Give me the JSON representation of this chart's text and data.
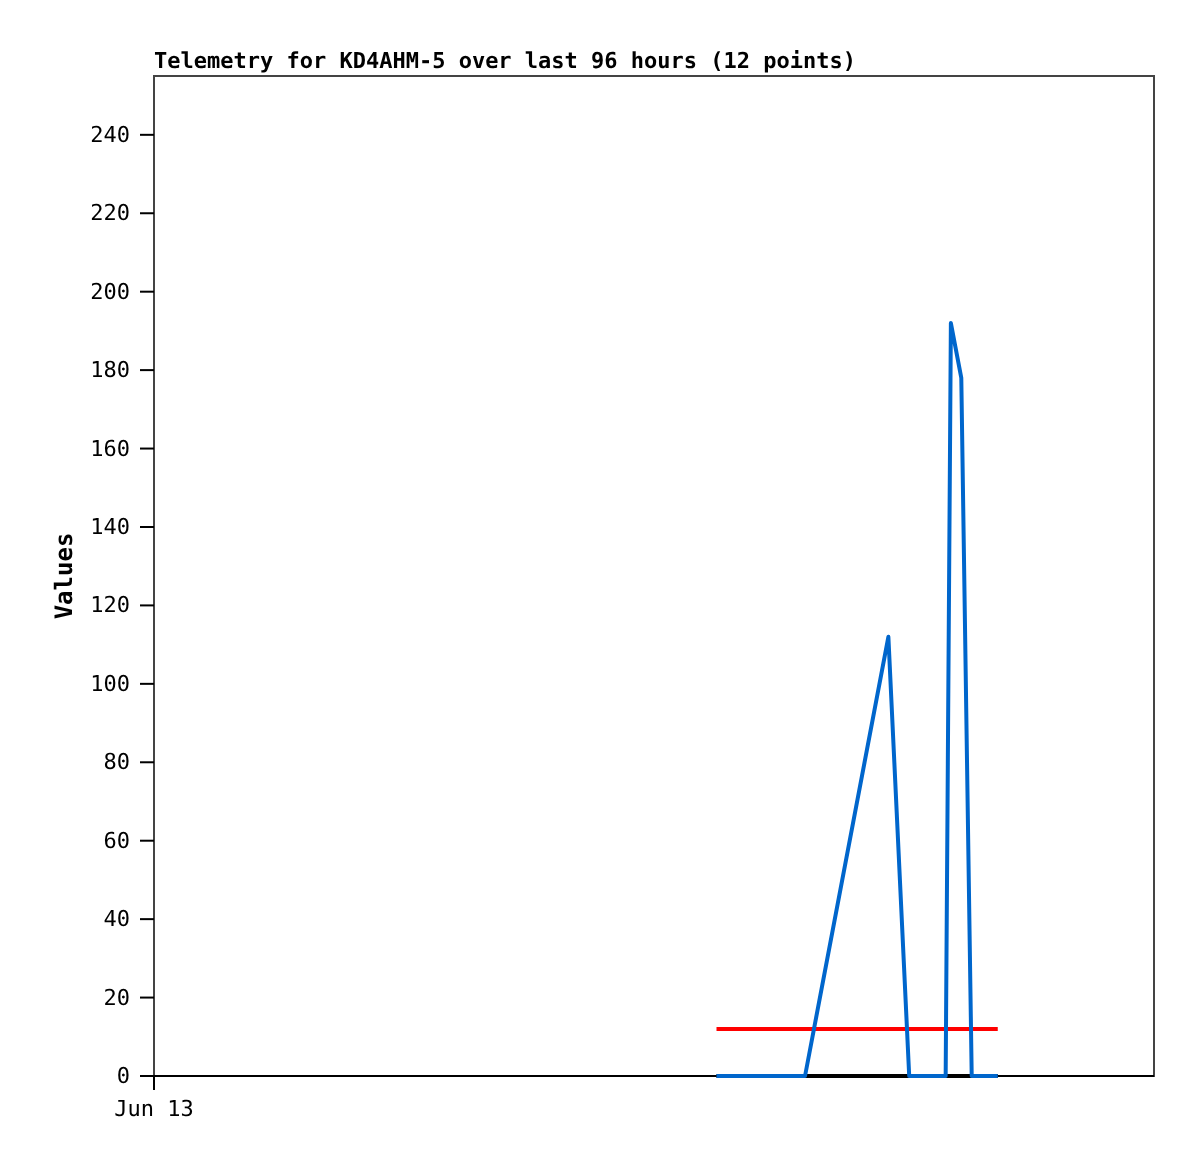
{
  "chart_data": {
    "type": "line",
    "title": "Telemetry for KD4AHM-5 over last 96 hours (12 points)",
    "ylabel": "Values",
    "categories": [
      null,
      null,
      null,
      null,
      null,
      null,
      null,
      null,
      null,
      null,
      null,
      null,
      null,
      null,
      null,
      null,
      null,
      null,
      null,
      null,
      null,
      null,
      null,
      null,
      null,
      null,
      null,
      null,
      null,
      null,
      null,
      null,
      null,
      null,
      null,
      null,
      null,
      null,
      null,
      null,
      null,
      null,
      null,
      null,
      null,
      null,
      null,
      null,
      null,
      null,
      null,
      null,
      null,
      null,
      null,
      null,
      null,
      null,
      null,
      null,
      null,
      null,
      null,
      null,
      null,
      null,
      null,
      null,
      null,
      null,
      null,
      null,
      null,
      null,
      null,
      null,
      null,
      null,
      null,
      null,
      null,
      null,
      null,
      null,
      null,
      null,
      null,
      null,
      null,
      null,
      null,
      null,
      null,
      null,
      null,
      null,
      null,
      null,
      null,
      null,
      null,
      null,
      null,
      null,
      null,
      null,
      null,
      null,
      null,
      null,
      null,
      null,
      null,
      null,
      null,
      null,
      null,
      null,
      null,
      null,
      null,
      null,
      null,
      null,
      null,
      null,
      null,
      null,
      null,
      null,
      null,
      null,
      null,
      null,
      null,
      null,
      null,
      null,
      null,
      null,
      null,
      null,
      null,
      null,
      null,
      null,
      null,
      null,
      null,
      null,
      null,
      null,
      null,
      null,
      null,
      null,
      null,
      null,
      null,
      null,
      null,
      null,
      null,
      null,
      null,
      null,
      null,
      null,
      null,
      null,
      null,
      null,
      null,
      null,
      null,
      null,
      null,
      null,
      null,
      null,
      null,
      null,
      null,
      null,
      null,
      null,
      null,
      null,
      null,
      null,
      null,
      null,
      null
    ],
    "ylim": [
      0,
      255
    ],
    "yticks": [
      0,
      20,
      40,
      60,
      80,
      100,
      120,
      140,
      160,
      180,
      200,
      220,
      240
    ],
    "annotations": [
      "Jun 13"
    ],
    "series": [
      {
        "color": "#000000",
        "values": [
          null,
          null,
          null,
          null,
          null,
          null,
          null,
          null,
          null,
          null,
          null,
          null,
          null,
          null,
          null,
          null,
          null,
          null,
          null,
          null,
          null,
          null,
          null,
          null,
          null,
          null,
          null,
          null,
          null,
          null,
          null,
          null,
          null,
          null,
          null,
          null,
          null,
          null,
          null,
          null,
          null,
          null,
          null,
          null,
          null,
          null,
          null,
          null,
          null,
          null,
          null,
          null,
          null,
          null,
          null,
          null,
          null,
          null,
          null,
          null,
          null,
          null,
          null,
          null,
          null,
          null,
          null,
          null,
          null,
          null,
          null,
          null,
          null,
          null,
          null,
          null,
          null,
          null,
          null,
          null,
          null,
          null,
          null,
          null,
          null,
          null,
          null,
          null,
          null,
          null,
          null,
          null,
          null,
          null,
          null,
          null,
          null,
          null,
          null,
          null,
          null,
          null,
          null,
          null,
          null,
          null,
          null,
          null,
          0,
          null,
          null,
          null,
          null,
          null,
          null,
          null,
          null,
          null,
          null,
          null,
          null,
          null,
          null,
          null,
          null,
          null,
          null,
          null,
          null,
          null,
          null,
          null,
          null,
          null,
          null,
          null,
          null,
          null,
          null,
          null,
          null,
          null,
          null,
          null,
          null,
          null,
          null,
          null,
          null,
          null,
          null,
          null,
          null,
          null,
          null,
          null,
          null,
          null,
          null,
          null,
          null,
          null,
          0,
          null,
          null,
          null,
          null,
          null,
          null,
          null,
          null,
          null,
          null,
          null,
          null,
          null,
          null,
          null,
          null,
          null,
          null,
          null,
          null,
          null,
          null,
          null,
          null,
          null,
          null,
          null,
          null,
          null,
          null
        ]
      },
      {
        "color": "#ff0000",
        "values": [
          null,
          null,
          null,
          null,
          null,
          null,
          null,
          null,
          null,
          null,
          null,
          null,
          null,
          null,
          null,
          null,
          null,
          null,
          null,
          null,
          null,
          null,
          null,
          null,
          null,
          null,
          null,
          null,
          null,
          null,
          null,
          null,
          null,
          null,
          null,
          null,
          null,
          null,
          null,
          null,
          null,
          null,
          null,
          null,
          null,
          null,
          null,
          null,
          null,
          null,
          null,
          null,
          null,
          null,
          null,
          null,
          null,
          null,
          null,
          null,
          null,
          null,
          null,
          null,
          null,
          null,
          null,
          null,
          null,
          null,
          null,
          null,
          null,
          null,
          null,
          null,
          null,
          null,
          null,
          null,
          null,
          null,
          null,
          null,
          null,
          null,
          null,
          null,
          null,
          null,
          null,
          null,
          null,
          null,
          null,
          null,
          null,
          null,
          null,
          null,
          null,
          null,
          null,
          null,
          null,
          null,
          null,
          null,
          12,
          null,
          null,
          null,
          null,
          null,
          null,
          null,
          null,
          null,
          null,
          null,
          null,
          null,
          null,
          null,
          null,
          null,
          null,
          null,
          null,
          null,
          null,
          null,
          null,
          null,
          null,
          null,
          null,
          null,
          null,
          null,
          null,
          null,
          null,
          null,
          null,
          null,
          null,
          null,
          null,
          null,
          null,
          null,
          null,
          null,
          null,
          null,
          null,
          null,
          null,
          null,
          null,
          null,
          12,
          null,
          null,
          null,
          null,
          null,
          null,
          null,
          null,
          null,
          null,
          null,
          null,
          null,
          null,
          null,
          null,
          null,
          null,
          null,
          null,
          null,
          null,
          null,
          null,
          null,
          null,
          null,
          null,
          null,
          null
        ]
      },
      {
        "color": "#0066cc",
        "values": [
          null,
          null,
          null,
          null,
          null,
          null,
          null,
          null,
          null,
          null,
          null,
          null,
          null,
          null,
          null,
          null,
          null,
          null,
          null,
          null,
          null,
          null,
          null,
          null,
          null,
          null,
          null,
          null,
          null,
          null,
          null,
          null,
          null,
          null,
          null,
          null,
          null,
          null,
          null,
          null,
          null,
          null,
          null,
          null,
          null,
          null,
          null,
          null,
          null,
          null,
          null,
          null,
          null,
          null,
          null,
          null,
          null,
          null,
          null,
          null,
          null,
          null,
          null,
          null,
          null,
          null,
          null,
          null,
          null,
          null,
          null,
          null,
          null,
          null,
          null,
          null,
          null,
          null,
          null,
          null,
          null,
          null,
          null,
          null,
          null,
          null,
          null,
          null,
          null,
          null,
          null,
          null,
          null,
          null,
          null,
          null,
          null,
          null,
          null,
          null,
          null,
          null,
          null,
          null,
          null,
          null,
          null,
          null,
          0,
          null,
          null,
          null,
          null,
          null,
          null,
          null,
          null,
          null,
          null,
          null,
          null,
          null,
          null,
          null,
          null,
          0,
          null,
          null,
          null,
          null,
          null,
          null,
          null,
          null,
          null,
          null,
          null,
          null,
          null,
          null,
          null,
          112,
          null,
          null,
          null,
          0,
          null,
          null,
          null,
          null,
          null,
          null,
          0,
          192,
          null,
          178,
          null,
          0,
          null,
          null,
          null,
          null,
          0,
          null,
          null,
          null,
          null,
          null,
          null,
          null,
          null,
          null,
          null,
          null,
          null,
          null,
          null,
          null,
          null,
          null,
          null,
          null,
          null,
          null,
          null,
          null,
          null,
          null,
          null,
          null,
          null,
          null,
          null
        ]
      }
    ]
  }
}
